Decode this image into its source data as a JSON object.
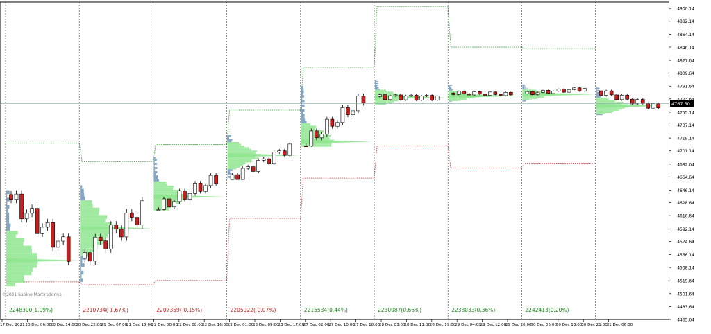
{
  "copyright": "©2021 Sabino Martiradonna",
  "current_price_label": "4767.50",
  "chart_data": {
    "type": "candlestick",
    "ylim": [
      4465.64,
      4909
    ],
    "y_ticks": [
      "4900.14",
      "4882.14",
      "4864.14",
      "4846.14",
      "4827.64",
      "4809.64",
      "4791.64",
      "4773.64",
      "4755.14",
      "4737.14",
      "4719.14",
      "4701.14",
      "4682.64",
      "4664.64",
      "4646.14",
      "4628.64",
      "4610.64",
      "4592.14",
      "4574.64",
      "4556.14",
      "4538.14",
      "4519.64",
      "4501.64",
      "4483.64",
      "4465.64"
    ],
    "x_ticks": [
      "17 Dec 2021",
      "20 Dec 06:00",
      "20 Dec 14:00",
      "20 Dec 22:00",
      "21 Dec 07:00",
      "21 Dec 15:00",
      "22 Dec 00:00",
      "22 Dec 08:00",
      "22 Dec 16:00",
      "23 Dec 01:00",
      "23 Dec 09:00",
      "23 Dec 17:00",
      "27 Dec 02:00",
      "27 Dec 10:00",
      "27 Dec 18:00",
      "28 Dec 03:00",
      "28 Dec 11:00",
      "28 Dec 19:00",
      "29 Dec 04:00",
      "29 Dec 12:00",
      "29 Dec 20:00",
      "30 Dec 05:00",
      "30 Dec 13:00",
      "30 Dec 21:00",
      "31 Dec 06:00"
    ],
    "current_price": 4767.5,
    "colors": {
      "up": "#ffffff",
      "down": "#c81e1e",
      "vah_line": "#2e9e2e",
      "val_line": "#cc3333",
      "profile_blue": "#6f97b8",
      "profile_green": "#8fe58f",
      "session_divider": "#555555",
      "current_line": "#88a8a8"
    },
    "sessions": [
      {
        "label": "2248300(1.09%)",
        "up": true,
        "open": 4640,
        "close": 4561,
        "high": 4646,
        "low": 4512,
        "vah": 4712,
        "val": 4518,
        "poc": 4548
      },
      {
        "label": "2210734(-1.67%)",
        "up": false,
        "open": 4551,
        "close": 4618,
        "high": 4653,
        "low": 4518,
        "vah": 4686,
        "val": 4514,
        "poc": 4593
      },
      {
        "label": "2207359(-0.15%)",
        "up": false,
        "open": 4618,
        "close": 4662,
        "high": 4693,
        "low": 4618,
        "vah": 4710,
        "val": 4520,
        "poc": 4637
      },
      {
        "label": "2205922(-0.07%)",
        "up": false,
        "open": 4661,
        "close": 4706,
        "high": 4723,
        "low": 4661,
        "vah": 4758,
        "val": 4607,
        "poc": 4695
      },
      {
        "label": "2215534(0.44%)",
        "up": true,
        "open": 4708,
        "close": 4773,
        "high": 4792,
        "low": 4707,
        "vah": 4818,
        "val": 4663,
        "poc": 4714
      },
      {
        "label": "2230087(0.66%)",
        "up": true,
        "open": 4777,
        "close": 4776,
        "high": 4800,
        "low": 4765,
        "vah": 4903,
        "val": 4708,
        "poc": 4776
      },
      {
        "label": "2238033(0.36%)",
        "up": true,
        "open": 4782,
        "close": 4780,
        "high": 4793,
        "low": 4770,
        "vah": 4846,
        "val": 4677,
        "poc": 4778
      },
      {
        "label": "2242413(0.20%)",
        "up": true,
        "open": 4781,
        "close": 4788,
        "high": 4794,
        "low": 4770,
        "vah": 4844,
        "val": 4684,
        "poc": 4780
      },
      {
        "label": "",
        "up": true,
        "open": 4785,
        "close": 4761,
        "high": 4791,
        "low": 4751,
        "vah": null,
        "val": null,
        "poc": 4764
      }
    ]
  }
}
